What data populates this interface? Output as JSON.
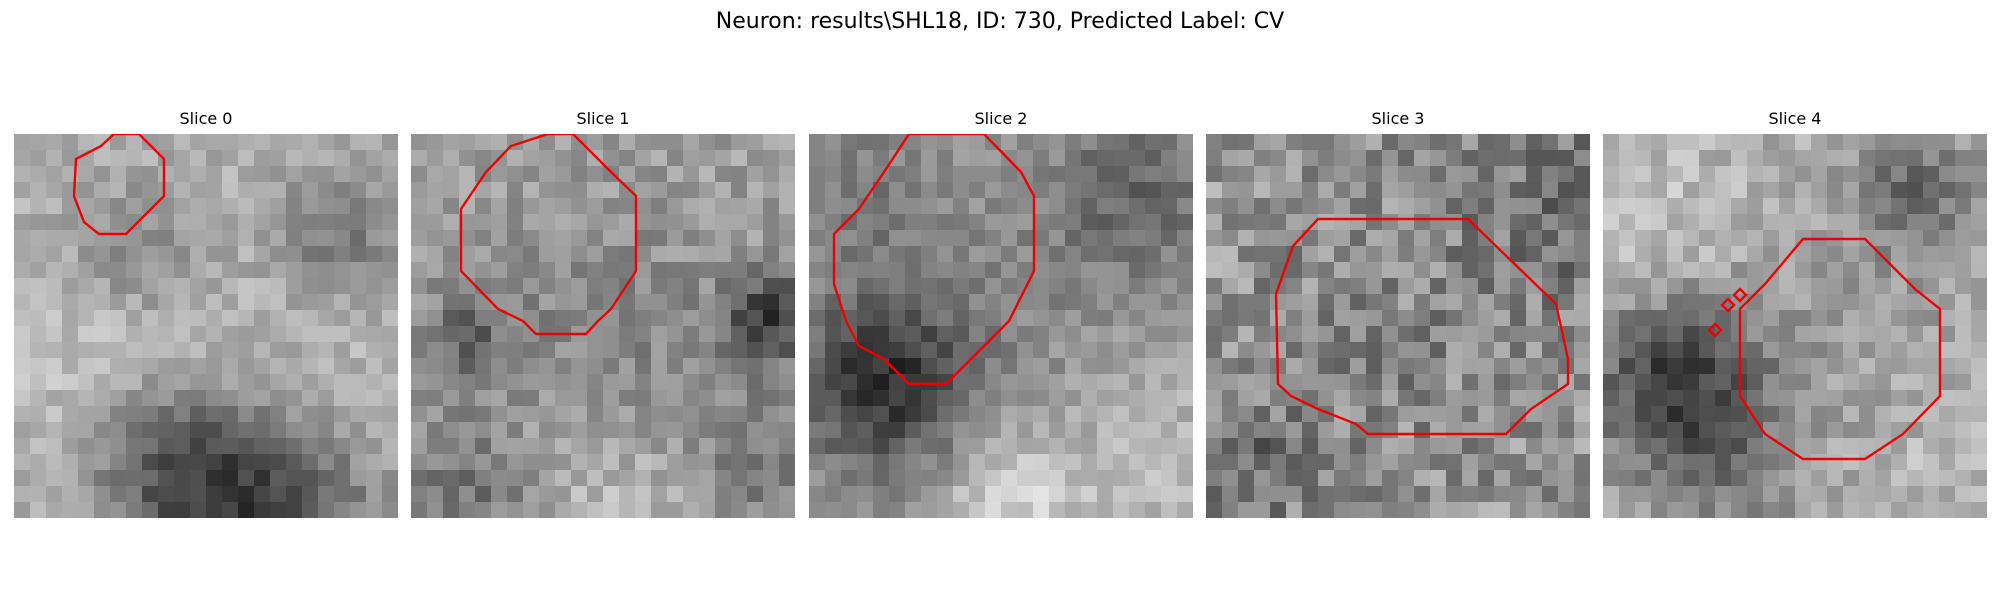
{
  "figure": {
    "title": "Neuron: results\\SHL18, ID: 730, Predicted Label: CV",
    "contour_color": "#ee0000",
    "colormap": "grayscale"
  },
  "slices": [
    {
      "title": "Slice 0"
    },
    {
      "title": "Slice 1"
    },
    {
      "title": "Slice 2"
    },
    {
      "title": "Slice 3"
    },
    {
      "title": "Slice 4"
    }
  ]
}
